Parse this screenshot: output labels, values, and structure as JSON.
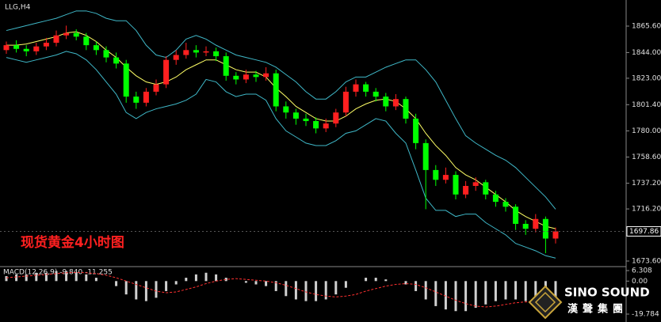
{
  "chart_data": [
    {
      "type": "candlestick",
      "title": "LLG,H4",
      "annotation": "现货黄金4小时图",
      "up_color": "#ff2020",
      "down_color": "#00ff00",
      "open": [
        1846,
        1850,
        1847,
        1845,
        1849,
        1852,
        1858,
        1860,
        1857,
        1850,
        1846,
        1840,
        1835,
        1808,
        1803,
        1812,
        1818,
        1838,
        1842,
        1846,
        1844,
        1845,
        1841,
        1825,
        1822,
        1826,
        1824,
        1827,
        1800,
        1795,
        1790,
        1788,
        1782,
        1786,
        1795,
        1812,
        1818,
        1812,
        1808,
        1800,
        1806,
        1790,
        1770,
        1748,
        1740,
        1744,
        1728,
        1735,
        1738,
        1728,
        1722,
        1718,
        1704,
        1700,
        1708,
        1692
      ],
      "high": [
        1853,
        1854,
        1850,
        1852,
        1856,
        1862,
        1866,
        1863,
        1860,
        1853,
        1849,
        1844,
        1838,
        1812,
        1815,
        1822,
        1841,
        1846,
        1852,
        1850,
        1849,
        1848,
        1844,
        1828,
        1830,
        1829,
        1832,
        1830,
        1804,
        1798,
        1794,
        1791,
        1790,
        1798,
        1816,
        1822,
        1820,
        1815,
        1811,
        1810,
        1808,
        1794,
        1773,
        1752,
        1750,
        1747,
        1739,
        1742,
        1740,
        1731,
        1725,
        1720,
        1707,
        1712,
        1710,
        1701
      ],
      "low": [
        1843,
        1844,
        1841,
        1842,
        1846,
        1849,
        1855,
        1854,
        1846,
        1842,
        1836,
        1831,
        1803,
        1798,
        1800,
        1809,
        1815,
        1834,
        1839,
        1840,
        1841,
        1837,
        1821,
        1818,
        1819,
        1820,
        1821,
        1796,
        1790,
        1785,
        1784,
        1778,
        1779,
        1783,
        1792,
        1808,
        1808,
        1804,
        1796,
        1797,
        1786,
        1765,
        1716,
        1735,
        1737,
        1724,
        1725,
        1731,
        1724,
        1718,
        1714,
        1699,
        1695,
        1697,
        1680,
        1688
      ],
      "close": [
        1850,
        1847,
        1845,
        1849,
        1852,
        1858,
        1860,
        1857,
        1850,
        1846,
        1840,
        1835,
        1808,
        1803,
        1812,
        1818,
        1838,
        1842,
        1846,
        1844,
        1845,
        1841,
        1825,
        1822,
        1826,
        1824,
        1827,
        1800,
        1795,
        1790,
        1788,
        1782,
        1786,
        1795,
        1812,
        1818,
        1812,
        1808,
        1800,
        1806,
        1790,
        1770,
        1748,
        1740,
        1744,
        1728,
        1735,
        1738,
        1728,
        1722,
        1718,
        1704,
        1700,
        1708,
        1692,
        1697.86
      ],
      "bands": [
        {
          "color": "#3fb8c8",
          "values": [
            1862,
            1864,
            1866,
            1868,
            1870,
            1872,
            1875,
            1878,
            1878,
            1876,
            1872,
            1870,
            1870,
            1862,
            1850,
            1842,
            1840,
            1846,
            1855,
            1858,
            1855,
            1850,
            1846,
            1842,
            1840,
            1838,
            1836,
            1832,
            1826,
            1820,
            1812,
            1806,
            1806,
            1812,
            1820,
            1824,
            1824,
            1828,
            1832,
            1835,
            1838,
            1838,
            1830,
            1820,
            1805,
            1790,
            1776,
            1770,
            1765,
            1760,
            1756,
            1750,
            1742,
            1734,
            1726,
            1716
          ]
        },
        {
          "color": "#ffff66",
          "values": [
            1850,
            1850,
            1851,
            1853,
            1855,
            1857,
            1860,
            1861,
            1858,
            1853,
            1846,
            1840,
            1832,
            1825,
            1820,
            1818,
            1820,
            1824,
            1830,
            1834,
            1838,
            1838,
            1834,
            1830,
            1828,
            1828,
            1824,
            1815,
            1808,
            1800,
            1795,
            1790,
            1788,
            1788,
            1792,
            1798,
            1802,
            1805,
            1806,
            1804,
            1798,
            1790,
            1778,
            1768,
            1760,
            1750,
            1744,
            1740,
            1734,
            1728,
            1722,
            1715,
            1710,
            1706,
            1702,
            1700
          ]
        },
        {
          "color": "#3fb8c8",
          "values": [
            1840,
            1838,
            1836,
            1838,
            1840,
            1842,
            1845,
            1843,
            1838,
            1830,
            1820,
            1810,
            1795,
            1790,
            1795,
            1798,
            1800,
            1802,
            1805,
            1810,
            1822,
            1820,
            1812,
            1808,
            1810,
            1810,
            1805,
            1790,
            1780,
            1775,
            1770,
            1768,
            1768,
            1772,
            1778,
            1780,
            1785,
            1790,
            1788,
            1778,
            1770,
            1748,
            1725,
            1715,
            1715,
            1710,
            1712,
            1712,
            1705,
            1700,
            1695,
            1688,
            1685,
            1682,
            1678,
            1676
          ]
        }
      ],
      "last_price": 1697.86,
      "ylim": [
        1669.7,
        1885.0
      ],
      "yticks": [
        {
          "value": 1865.6,
          "label": "1865.60"
        },
        {
          "value": 1844,
          "label": "1844.00"
        },
        {
          "value": 1823,
          "label": "1823.00"
        },
        {
          "value": 1801.4,
          "label": "1801.40"
        },
        {
          "value": 1780,
          "label": "1780.00"
        },
        {
          "value": 1758.6,
          "label": "1758.60"
        },
        {
          "value": 1737.2,
          "label": "1737.20"
        },
        {
          "value": 1716.2,
          "label": "1716.20"
        },
        {
          "value": 1673.6,
          "label": "1673.60"
        }
      ]
    },
    {
      "type": "macd",
      "title": "MACD(12,26,9) -9.840 -11.255",
      "hist_color": "#d0d0d0",
      "signal_color": "#ff3030",
      "histogram": [
        3,
        4,
        4,
        5,
        5,
        6,
        6,
        5,
        4,
        2,
        0,
        -3,
        -8,
        -11,
        -12,
        -10,
        -6,
        -2,
        2,
        4,
        5,
        4,
        2,
        0,
        -1,
        -2,
        -3,
        -6,
        -9,
        -11,
        -12,
        -12,
        -11,
        -8,
        -4,
        0,
        2,
        2,
        1,
        0,
        -2,
        -6,
        -11,
        -15,
        -17,
        -18,
        -18,
        -16,
        -14,
        -12,
        -11,
        -11,
        -12,
        -11,
        -11,
        -9.84
      ],
      "signal": [
        2,
        2.5,
        3,
        3.5,
        4,
        4.5,
        5,
        5.2,
        5,
        4.5,
        3.5,
        2,
        0,
        -2,
        -4,
        -6,
        -7,
        -6.5,
        -5,
        -3.5,
        -1.5,
        0,
        1,
        1.5,
        1,
        0.5,
        0,
        -1,
        -2.5,
        -4.5,
        -6.5,
        -8,
        -9,
        -9.5,
        -9,
        -8,
        -6,
        -4.5,
        -3,
        -2,
        -1.5,
        -2,
        -4,
        -6.5,
        -9,
        -11.5,
        -13.5,
        -15,
        -15.5,
        -15,
        -14,
        -13,
        -12.5,
        -12,
        -11.5,
        -11.255
      ],
      "ylim": [
        -24.05,
        8.2
      ],
      "yticks": [
        6.308,
        {
          "value": 0,
          "label": "0.00"
        },
        -19.784
      ]
    }
  ],
  "logo": {
    "name": "SINO SOUND",
    "subtitle": "漢聲集團"
  }
}
